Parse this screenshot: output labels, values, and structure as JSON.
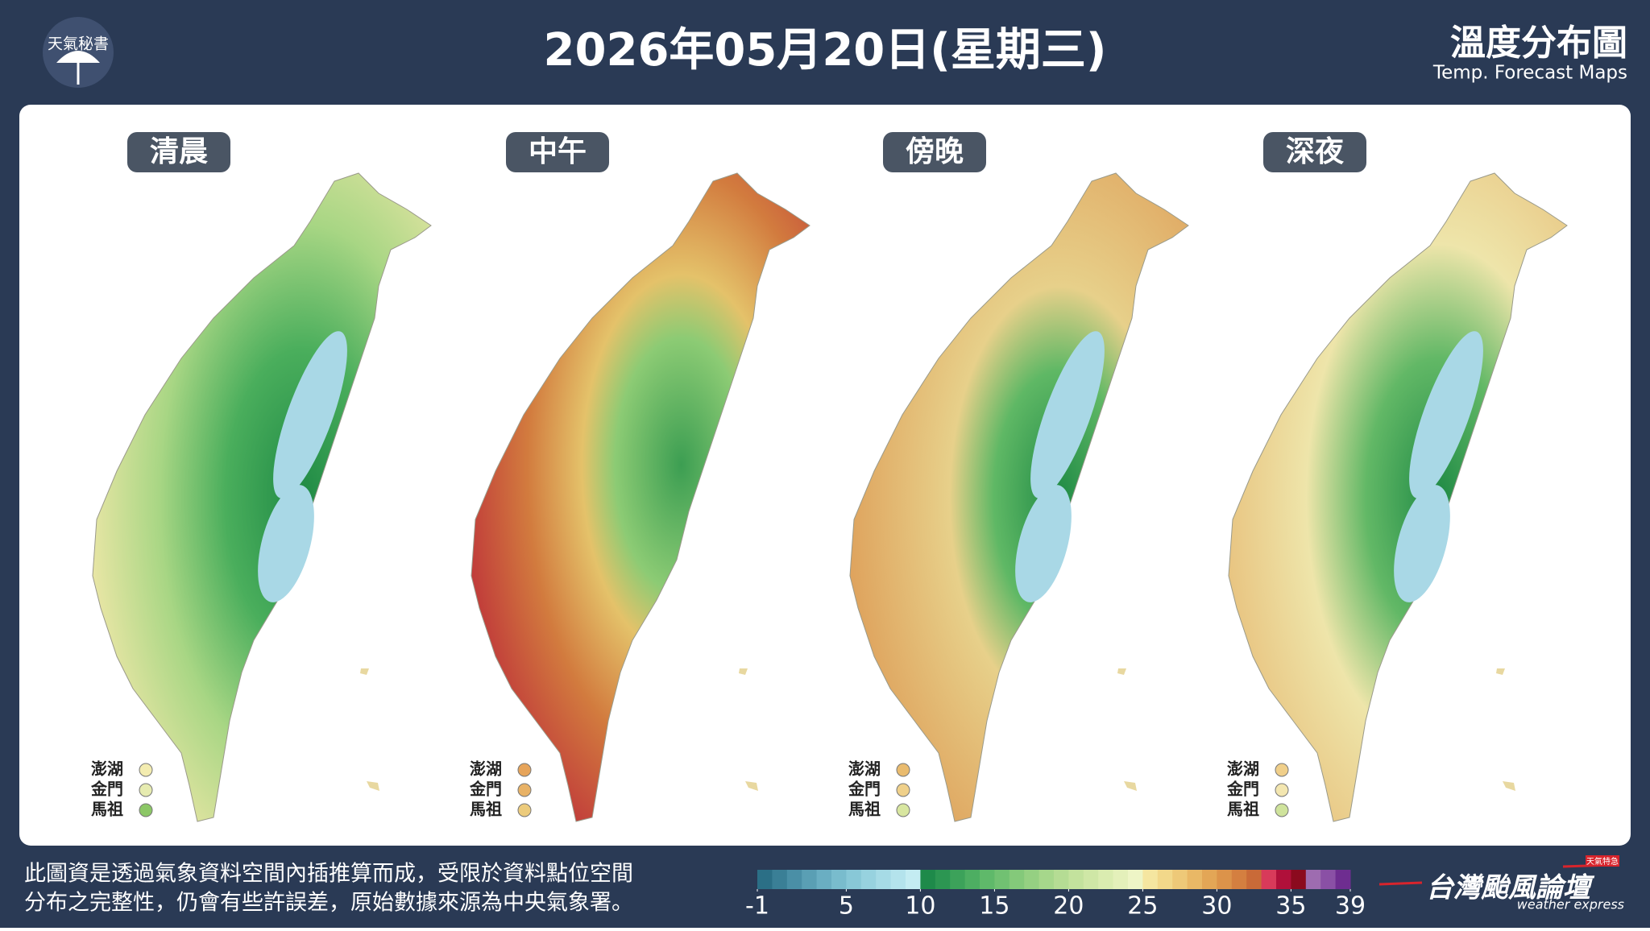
{
  "header": {
    "logo": "天氣秘書",
    "title": "2026年05月20日(星期三)",
    "map_title": "溫度分布圖",
    "map_subtitle": "Temp. Forecast Maps"
  },
  "panels": [
    {
      "label": "清晨"
    },
    {
      "label": "中午"
    },
    {
      "label": "傍晚"
    },
    {
      "label": "深夜"
    }
  ],
  "islands": [
    "澎湖",
    "金門",
    "馬祖"
  ],
  "footer": {
    "note_lines": [
      "此圖資是透過氣象資料空間內插推算而成，受限於資料點位空間",
      "分布之完整性，仍會有些許誤差，原始數據來源為中央氣象署。"
    ],
    "brand": "台灣颱風論壇",
    "brand_subtitle": "weather express",
    "brand_tag": "天氣特急"
  },
  "colorbar": {
    "lim": [
      -1,
      39
    ],
    "ticks": [
      -1,
      5,
      10,
      15,
      20,
      25,
      30,
      35,
      39
    ],
    "colors": [
      "#2b6f86",
      "#3a7f96",
      "#4a8fa6",
      "#5a9fb4",
      "#6aaec2",
      "#79bccd",
      "#88c8d7",
      "#97d2df",
      "#a6dbe6",
      "#b4e3ec",
      "#c4ecf2",
      "#1e8a4a",
      "#2c9652",
      "#3ca25a",
      "#4dae62",
      "#5fb96a",
      "#71c172",
      "#84c97a",
      "#95d082",
      "#a6d78b",
      "#b5dc94",
      "#c3e29d",
      "#cfe7a6",
      "#daecb0",
      "#e4f0ba",
      "#eef5c6",
      "#f5e6a0",
      "#f2d88a",
      "#eec978",
      "#e9b866",
      "#e3a656",
      "#dc934a",
      "#d47f40",
      "#c96a38",
      "#d83a5a",
      "#b0103a",
      "#8b0a1e",
      "#9e6cb0",
      "#8a50a5",
      "#6e2d90"
    ]
  }
}
